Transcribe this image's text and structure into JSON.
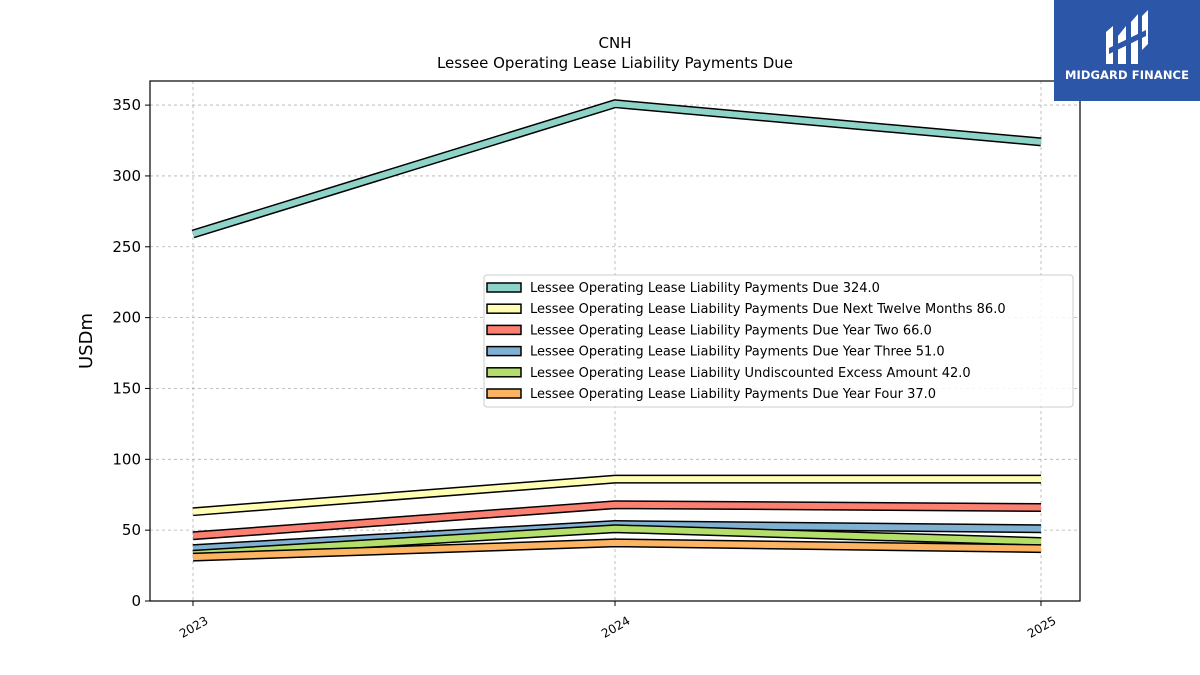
{
  "chart_data": {
    "type": "line",
    "title": "CNH",
    "subtitle": "Lessee Operating Lease Liability Payments Due",
    "xlabel": "",
    "ylabel": "USDm",
    "categories": [
      "2023",
      "2024",
      "2025"
    ],
    "ylim": [
      0,
      367
    ],
    "yticks": [
      0,
      50,
      100,
      150,
      200,
      250,
      300,
      350
    ],
    "grid": true,
    "legend_position": "center-right",
    "series": [
      {
        "name": "Lessee Operating Lease Liability Payments Due  324.0",
        "values": [
          259,
          351,
          324
        ],
        "color": "#8dd3c7"
      },
      {
        "name": "Lessee Operating Lease Liability Payments Due Next Twelve Months  86.0",
        "values": [
          63,
          86,
          86
        ],
        "color": "#ffffb3"
      },
      {
        "name": "Lessee Operating Lease Liability Payments Due Year Two  66.0",
        "values": [
          46,
          68,
          66
        ],
        "color": "#fb8072"
      },
      {
        "name": "Lessee Operating Lease Liability Payments Due Year Three  51.0",
        "values": [
          37,
          54,
          51
        ],
        "color": "#80b1d3"
      },
      {
        "name": "Lessee Operating Lease Liability Undiscounted Excess Amount  42.0",
        "values": [
          33,
          51,
          42
        ],
        "color": "#b3de69"
      },
      {
        "name": "Lessee Operating Lease Liability Payments Due Year Four  37.0",
        "values": [
          31,
          41,
          37
        ],
        "color": "#fdb462"
      }
    ]
  },
  "logo": {
    "text": "MIDGARD FINANCE",
    "background": "#2c56a8"
  }
}
